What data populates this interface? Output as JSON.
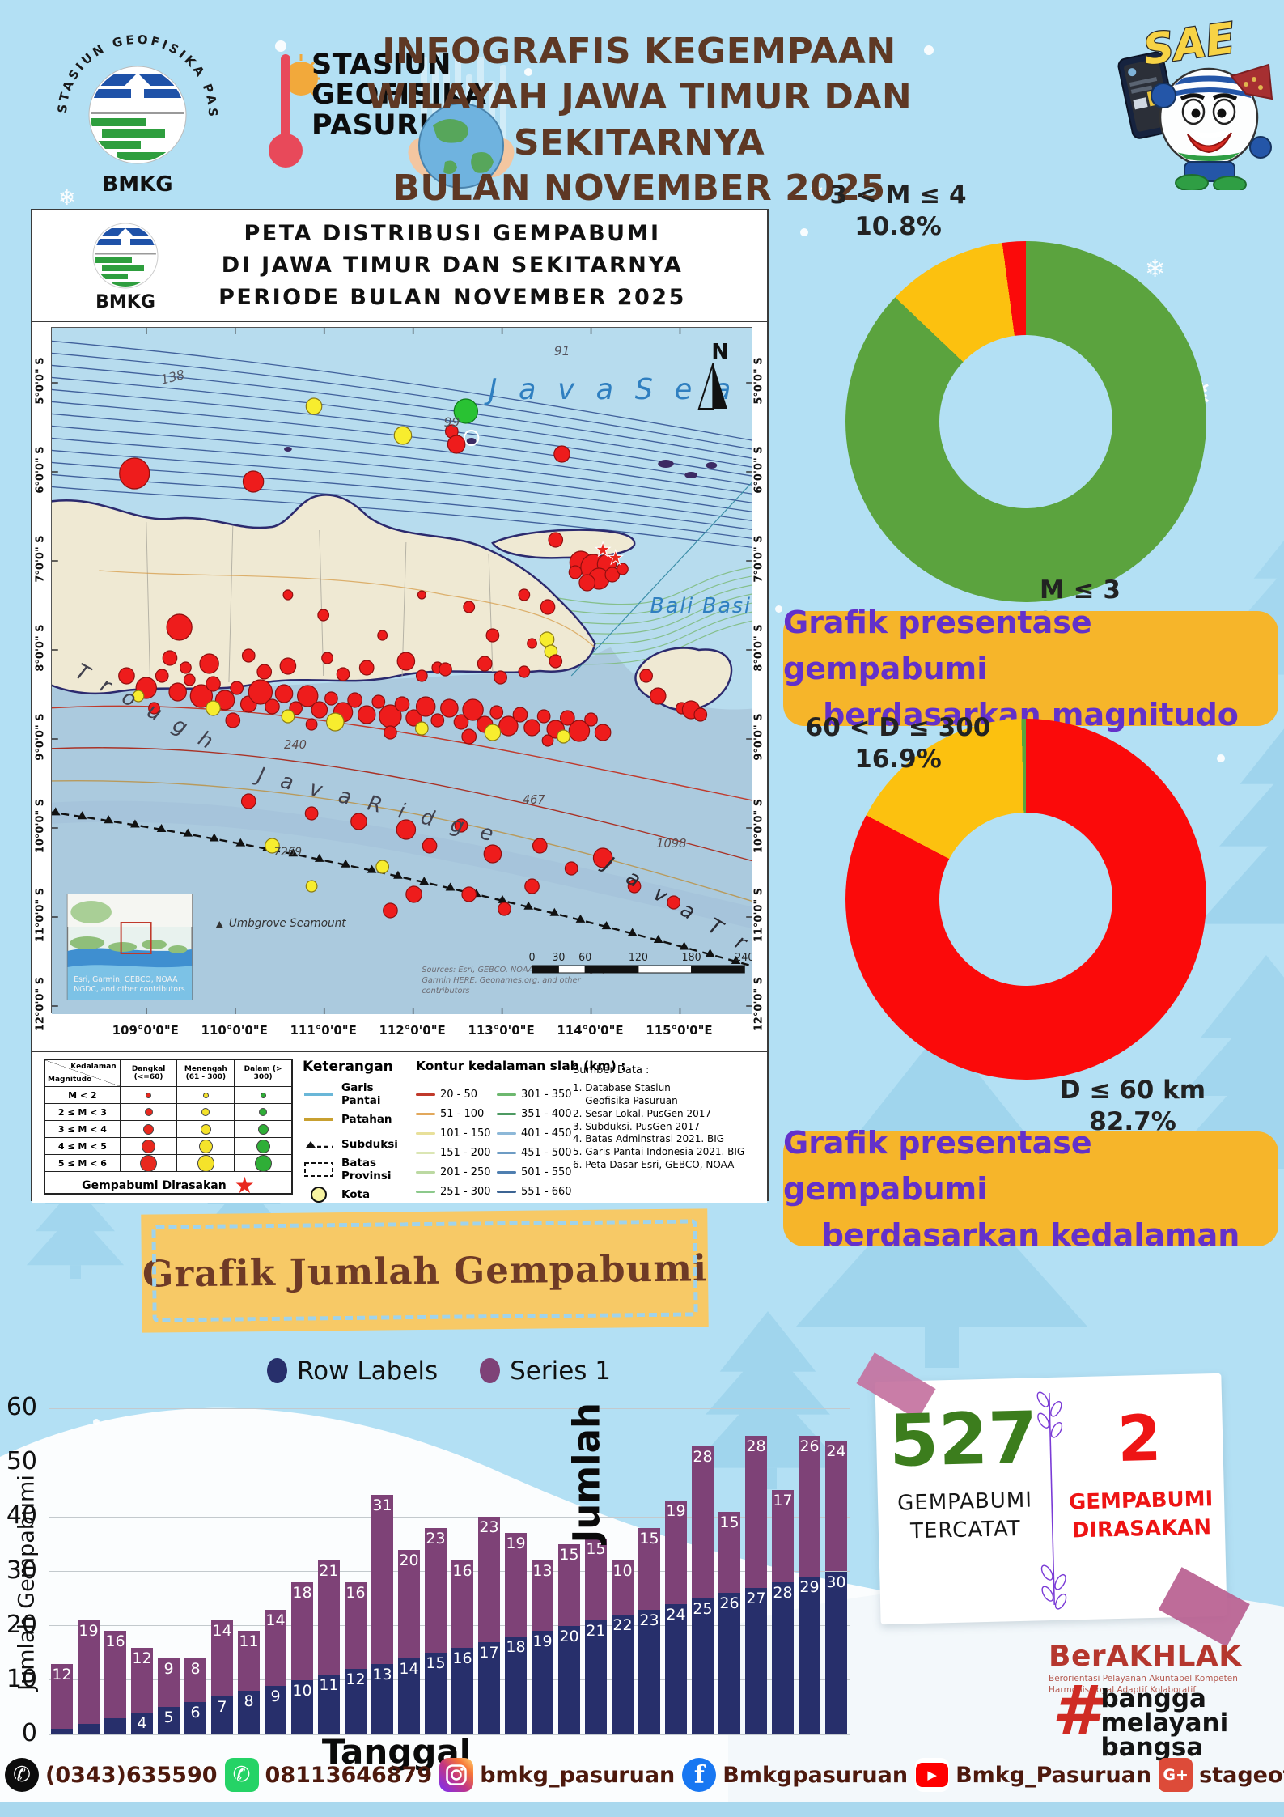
{
  "header": {
    "stamp_round_text": "STASIUN GEOFISIKA PASURUAN",
    "stamp_bmkg": "BMKG",
    "station_lines": [
      "STASIUN",
      "GEOFISIKA",
      "PASURUAN"
    ],
    "title_lines": [
      "INFOGRAFIS KEGEMPAAN",
      "WILAYAH JAWA TIMUR DAN SEKITARNYA",
      "BULAN  NOVEMBER 2025"
    ],
    "mascot_label": "SAE"
  },
  "map": {
    "title_lines": [
      "PETA DISTRIBUSI GEMPABUMI",
      "DI JAWA TIMUR DAN SEKITARNYA",
      "PERIODE BULAN  NOVEMBER 2025"
    ],
    "logo_text": "BMKG",
    "sea_label": "J a v a   S e a",
    "bali_basin_label": "Bali Basin",
    "trough_label": "T r o u g h",
    "ridge_label": "J a v a   R i d g e",
    "trench_label": "J a v a   T r e n c h",
    "seamount_label": "Umbgrove Seamount",
    "north_label": "N",
    "contour_labels": {
      "c91": "91",
      "c138": "138",
      "c99": "99",
      "c240": "240",
      "c467": "467",
      "c1098": "1098",
      "c7269": "7269"
    },
    "lat_labels": [
      "5°0'0\" S",
      "6°0'0\" S",
      "7°0'0\" S",
      "8°0'0\" S",
      "9°0'0\" S",
      "10°0'0\" S",
      "11°0'0\" S",
      "12°0'0\" S"
    ],
    "lon_labels": [
      "109°0'0\"E",
      "110°0'0\"E",
      "111°0'0\"E",
      "112°0'0\"E",
      "113°0'0\"E",
      "114°0'0\"E",
      "115°0'0\"E"
    ],
    "inset_attribution": [
      "Esri, Garmin, GEBCO, NOAA",
      "NGDC, and other contributors"
    ],
    "scale_ticks": [
      "0",
      "30",
      "60",
      "120",
      "180",
      "240"
    ],
    "scale_unit": "km",
    "sources_lines": [
      "Sources: Esri, GEBCO, NOAA, National Geographic,",
      "Garmin HERE, Geonames.org, and other",
      "contributors"
    ],
    "legend": {
      "corner_top": "Kedalaman",
      "corner_bottom": "Magnitudo",
      "columns": [
        "Dangkal (<=60)",
        "Menengah (61 - 300)",
        "Dalam (> 300)"
      ],
      "column_colors": [
        "#e8281e",
        "#f5e32a",
        "#2fae37"
      ],
      "rows": [
        "M < 2",
        "2 ≤ M < 3",
        "3 ≤ M < 4",
        "4 ≤ M < 5",
        "5 ≤ M < 6"
      ],
      "dot_sizes": [
        5,
        8,
        11,
        15,
        19
      ],
      "felt_label": "Gempabumi Dirasakan",
      "keterangan_title": "Keterangan",
      "keterangan_items": [
        "Garis Pantai",
        "Patahan",
        "Subduksi",
        "Batas Provinsi",
        "Kota"
      ],
      "kontur_title": "Kontur kedalaman slab (km) :",
      "kontur_col1": [
        {
          "label": "20 - 50",
          "color": "#c0392b"
        },
        {
          "label": "51 - 100",
          "color": "#e2a85c"
        },
        {
          "label": "101 - 150",
          "color": "#e8e09a"
        },
        {
          "label": "151 - 200",
          "color": "#dbe6b4"
        },
        {
          "label": "201 - 250",
          "color": "#bcd9a2"
        },
        {
          "label": "251 - 300",
          "color": "#8cc98b"
        }
      ],
      "kontur_col2": [
        {
          "label": "301 - 350",
          "color": "#6db86f"
        },
        {
          "label": "351 - 400",
          "color": "#4d9a62"
        },
        {
          "label": "401 - 450",
          "color": "#8db8d8"
        },
        {
          "label": "451 - 500",
          "color": "#6d9cc4"
        },
        {
          "label": "501 - 550",
          "color": "#4f7fb0"
        },
        {
          "label": "551 - 660",
          "color": "#3c6493"
        }
      ],
      "sumber_title": "Sumber Data :",
      "sumber_items": [
        "1. Database Stasiun",
        "    Geofisika Pasuruan",
        "2. Sesar Lokal. PusGen 2017",
        "3. Subduksi. PusGen 2017",
        "4. Batas Adminstrasi 2021. BIG",
        "5. Garis Pantai Indonesia 2021. BIG",
        "6. Peta Dasar Esri, GEBCO, NOAA"
      ]
    },
    "dots": [
      [
        526,
        103,
        15,
        "G"
      ],
      [
        446,
        133,
        11,
        "Y"
      ],
      [
        333,
        97,
        10,
        "Y"
      ],
      [
        508,
        128,
        8,
        "R"
      ],
      [
        514,
        144,
        11,
        "R"
      ],
      [
        648,
        156,
        10,
        "R"
      ],
      [
        105,
        180,
        19,
        "R"
      ],
      [
        256,
        190,
        13,
        "R"
      ],
      [
        162,
        370,
        16,
        "R"
      ],
      [
        300,
        330,
        6,
        "R"
      ],
      [
        345,
        355,
        7,
        "R"
      ],
      [
        420,
        380,
        6,
        "R"
      ],
      [
        470,
        330,
        5,
        "R"
      ],
      [
        530,
        345,
        7,
        "R"
      ],
      [
        560,
        380,
        8,
        "R"
      ],
      [
        610,
        390,
        6,
        "R"
      ],
      [
        490,
        420,
        7,
        "R"
      ],
      [
        629,
        385,
        9,
        "Y"
      ],
      [
        634,
        400,
        8,
        "Y"
      ],
      [
        640,
        412,
        8,
        "R"
      ],
      [
        600,
        330,
        7,
        "R"
      ],
      [
        630,
        345,
        9,
        "R"
      ],
      [
        640,
        262,
        9,
        "R"
      ],
      [
        672,
        290,
        14,
        "R"
      ],
      [
        688,
        296,
        16,
        "R"
      ],
      [
        705,
        292,
        12,
        "R"
      ],
      [
        695,
        310,
        13,
        "R"
      ],
      [
        712,
        305,
        9,
        "R"
      ],
      [
        680,
        315,
        10,
        "R"
      ],
      [
        725,
        298,
        7,
        "R"
      ],
      [
        665,
        302,
        8,
        "R"
      ],
      [
        755,
        430,
        8,
        "R"
      ],
      [
        770,
        455,
        10,
        "R"
      ],
      [
        800,
        470,
        7,
        "R"
      ],
      [
        812,
        472,
        11,
        "R"
      ],
      [
        824,
        478,
        8,
        "R"
      ],
      [
        150,
        408,
        9,
        "R"
      ],
      [
        200,
        415,
        12,
        "R"
      ],
      [
        250,
        405,
        8,
        "R"
      ],
      [
        300,
        418,
        10,
        "R"
      ],
      [
        350,
        408,
        7,
        "R"
      ],
      [
        400,
        420,
        9,
        "R"
      ],
      [
        450,
        412,
        11,
        "R"
      ],
      [
        500,
        422,
        8,
        "R"
      ],
      [
        550,
        415,
        9,
        "R"
      ],
      [
        600,
        425,
        7,
        "R"
      ],
      [
        170,
        420,
        7,
        "R"
      ],
      [
        270,
        425,
        9,
        "R"
      ],
      [
        370,
        428,
        8,
        "R"
      ],
      [
        470,
        430,
        7,
        "R"
      ],
      [
        570,
        432,
        8,
        "R"
      ],
      [
        95,
        430,
        10,
        "R"
      ],
      [
        120,
        445,
        13,
        "R"
      ],
      [
        140,
        430,
        8,
        "R"
      ],
      [
        160,
        450,
        11,
        "R"
      ],
      [
        175,
        435,
        7,
        "R"
      ],
      [
        190,
        455,
        14,
        "R"
      ],
      [
        205,
        440,
        9,
        "R"
      ],
      [
        220,
        460,
        12,
        "R"
      ],
      [
        235,
        445,
        8,
        "R"
      ],
      [
        250,
        465,
        10,
        "R"
      ],
      [
        265,
        450,
        15,
        "R"
      ],
      [
        280,
        468,
        9,
        "R"
      ],
      [
        295,
        452,
        11,
        "R"
      ],
      [
        310,
        470,
        8,
        "R"
      ],
      [
        325,
        455,
        13,
        "R"
      ],
      [
        340,
        472,
        10,
        "R"
      ],
      [
        355,
        458,
        8,
        "R"
      ],
      [
        370,
        475,
        12,
        "R"
      ],
      [
        385,
        460,
        9,
        "R"
      ],
      [
        400,
        478,
        11,
        "R"
      ],
      [
        415,
        462,
        8,
        "R"
      ],
      [
        430,
        480,
        14,
        "R"
      ],
      [
        445,
        465,
        9,
        "R"
      ],
      [
        460,
        482,
        10,
        "R"
      ],
      [
        475,
        468,
        12,
        "R"
      ],
      [
        490,
        485,
        8,
        "R"
      ],
      [
        505,
        470,
        11,
        "R"
      ],
      [
        520,
        487,
        9,
        "R"
      ],
      [
        535,
        472,
        13,
        "R"
      ],
      [
        550,
        490,
        10,
        "R"
      ],
      [
        565,
        475,
        8,
        "R"
      ],
      [
        580,
        492,
        12,
        "R"
      ],
      [
        595,
        478,
        9,
        "R"
      ],
      [
        610,
        494,
        10,
        "R"
      ],
      [
        625,
        480,
        8,
        "R"
      ],
      [
        640,
        496,
        11,
        "R"
      ],
      [
        655,
        482,
        9,
        "R"
      ],
      [
        670,
        498,
        13,
        "R"
      ],
      [
        685,
        484,
        8,
        "R"
      ],
      [
        700,
        500,
        10,
        "R"
      ],
      [
        130,
        470,
        7,
        "R"
      ],
      [
        230,
        485,
        9,
        "R"
      ],
      [
        330,
        490,
        7,
        "R"
      ],
      [
        430,
        500,
        8,
        "R"
      ],
      [
        530,
        505,
        9,
        "R"
      ],
      [
        630,
        510,
        7,
        "R"
      ],
      [
        205,
        470,
        9,
        "Y"
      ],
      [
        360,
        487,
        11,
        "Y"
      ],
      [
        470,
        495,
        8,
        "Y"
      ],
      [
        560,
        500,
        10,
        "Y"
      ],
      [
        650,
        505,
        8,
        "Y"
      ],
      [
        110,
        455,
        7,
        "Y"
      ],
      [
        300,
        480,
        8,
        "Y"
      ],
      [
        250,
        585,
        9,
        "R"
      ],
      [
        330,
        600,
        8,
        "R"
      ],
      [
        390,
        610,
        10,
        "R"
      ],
      [
        450,
        620,
        12,
        "R"
      ],
      [
        480,
        640,
        9,
        "R"
      ],
      [
        520,
        615,
        8,
        "R"
      ],
      [
        560,
        650,
        11,
        "R"
      ],
      [
        620,
        640,
        9,
        "R"
      ],
      [
        700,
        655,
        12,
        "R"
      ],
      [
        660,
        668,
        8,
        "R"
      ],
      [
        610,
        690,
        9,
        "R"
      ],
      [
        460,
        700,
        10,
        "R"
      ],
      [
        430,
        720,
        9,
        "R"
      ],
      [
        740,
        690,
        8,
        "R"
      ],
      [
        790,
        710,
        8,
        "R"
      ],
      [
        280,
        640,
        9,
        "Y"
      ],
      [
        420,
        666,
        8,
        "Y"
      ],
      [
        330,
        690,
        7,
        "Y"
      ],
      [
        530,
        700,
        9,
        "R"
      ],
      [
        575,
        718,
        8,
        "R"
      ]
    ],
    "felt_stars": [
      [
        700,
        282
      ],
      [
        716,
        292
      ]
    ]
  },
  "chart_data": [
    {
      "type": "pie",
      "name": "magnitude-donut",
      "title": "Grafik presentase gempabumi berdasarkan magnitudo",
      "slices": [
        {
          "label": "M ≤ 3",
          "pct": 87.1,
          "color": "#5ba33e"
        },
        {
          "label": "3 < M ≤ 4",
          "pct": 10.8,
          "color": "#fcc10f"
        },
        {
          "label": "M > 4",
          "pct": 2.1,
          "color": "#fb0a0a"
        }
      ],
      "callout_top": {
        "line1": "3 < M ≤ 4",
        "line2": "10.8%"
      },
      "callout_bottom": {
        "line1": "M ≤ 3",
        "line2": "87.1%"
      }
    },
    {
      "type": "pie",
      "name": "depth-donut",
      "title": "Grafik presentase gempabumi berdasarkan kedalaman",
      "slices": [
        {
          "label": "D ≤ 60 km",
          "pct": 82.7,
          "color": "#fb0a0a"
        },
        {
          "label": "60 < D ≤ 300",
          "pct": 16.9,
          "color": "#fcc10f"
        },
        {
          "label": "D > 300",
          "pct": 0.4,
          "color": "#5ba33e"
        }
      ],
      "callout_top": {
        "line1": "60 < D ≤ 300",
        "line2": "16.9%"
      },
      "callout_bottom": {
        "line1": "D ≤ 60 km",
        "line2": "82.7%"
      }
    },
    {
      "type": "bar",
      "name": "daily-earthquakes",
      "stacked": true,
      "xlabel": "Tanggal",
      "ylabel": "Jumlah Gempabumi",
      "ylabel2": "Jumlah",
      "ylim": [
        0,
        60
      ],
      "yticks": [
        0,
        10,
        20,
        30,
        40,
        50,
        60
      ],
      "legend": [
        {
          "name": "Row Labels",
          "color": "#272f6b"
        },
        {
          "name": "Series 1",
          "color": "#7e4277"
        }
      ],
      "categories": [
        1,
        2,
        3,
        4,
        5,
        6,
        7,
        8,
        9,
        10,
        11,
        12,
        13,
        14,
        15,
        16,
        17,
        18,
        19,
        20,
        21,
        22,
        23,
        24,
        25,
        26,
        27,
        28,
        29,
        30
      ],
      "series": [
        {
          "name": "Row Labels",
          "values": [
            1,
            2,
            3,
            4,
            5,
            6,
            7,
            8,
            9,
            10,
            11,
            12,
            13,
            14,
            15,
            16,
            17,
            18,
            19,
            20,
            21,
            22,
            23,
            24,
            25,
            26,
            27,
            28,
            29,
            30
          ]
        },
        {
          "name": "Series 1",
          "values": [
            12,
            19,
            16,
            12,
            9,
            8,
            14,
            11,
            14,
            18,
            21,
            16,
            31,
            20,
            23,
            16,
            23,
            19,
            13,
            15,
            15,
            10,
            15,
            19,
            28,
            15,
            28,
            17,
            26,
            24
          ]
        }
      ]
    }
  ],
  "captions": {
    "magnitude": [
      "Grafik presentase gempabumi",
      "berdasarkan magnitudo"
    ],
    "depth": [
      "Grafik presentase gempabumi",
      "berdasarkan kedalaman"
    ]
  },
  "graph_title": "Grafik Jumlah Gempabumi",
  "stats": {
    "recorded_value": "527",
    "recorded_label1": "GEMPABUMI",
    "recorded_label2": "TERCATAT",
    "felt_value": "2",
    "felt_label1": "GEMPABUMI",
    "felt_label2": "DIRASAKAN"
  },
  "berakhlak": {
    "title": "BerAKHLAK",
    "subtitle1": "Berorientasi Pelayanan Akuntabel Kompeten",
    "subtitle2": "Harmonis Loyal Adaptif Kolaboratif",
    "hashtag_words": [
      "bangga",
      "melayani",
      "bangsa"
    ]
  },
  "footer": {
    "phone": "(0343)635590",
    "whatsapp": "08113646879",
    "instagram": "bmkg_pasuruan",
    "facebook": "Bmkgpasuruan",
    "youtube": "Bmkg_Pasuruan",
    "email": "stageof.pasuruan@bmkg.go.id"
  }
}
